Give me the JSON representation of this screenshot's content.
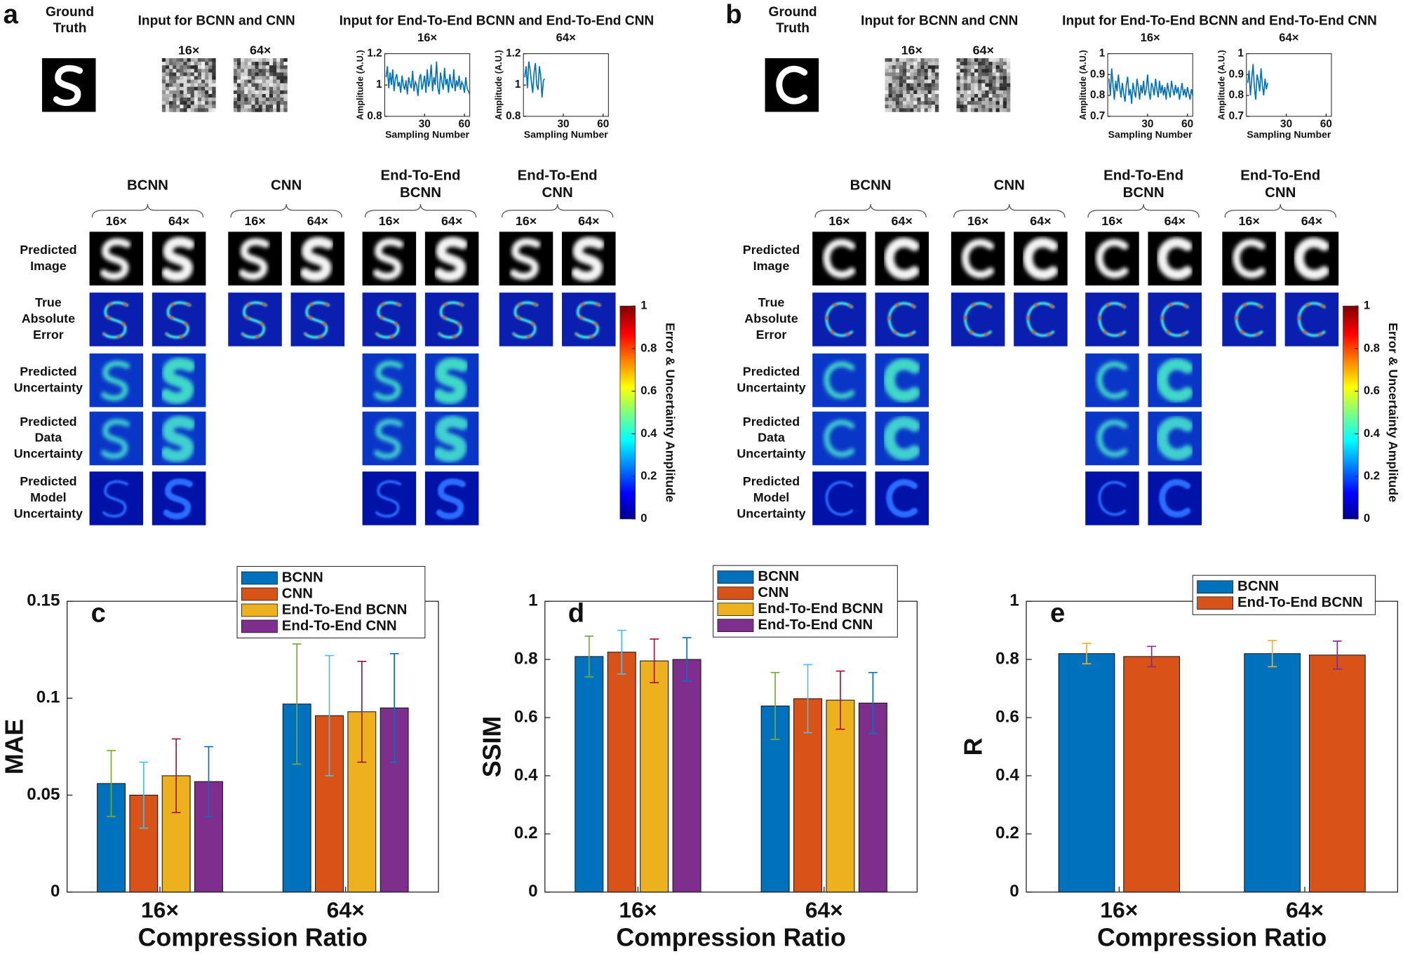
{
  "panels": [
    {
      "label": "a",
      "ground_truth": [
        "Ground",
        "Truth"
      ],
      "input_title": "Input for BCNN and CNN",
      "e2e_title": "Input for End-To-End BCNN and End-To-End CNN",
      "ratios": [
        "16×",
        "64×"
      ],
      "methods": [
        [
          "BCNN"
        ],
        [
          "CNN"
        ],
        [
          "End-To-End",
          "BCNN"
        ],
        [
          "End-To-End",
          "CNN"
        ]
      ],
      "rows": [
        [
          "Predicted",
          "Image"
        ],
        [
          "True",
          "Absolute",
          "Error"
        ],
        [
          "Predicted",
          "Uncertainty"
        ],
        [
          "Predicted",
          "Data",
          "Uncertainty"
        ],
        [
          "Predicted",
          "Model",
          "Uncertainty"
        ]
      ],
      "colorbar": {
        "label": "Error & Uncertainty Amplitude",
        "lim": [
          0,
          1
        ],
        "ticks": [
          0,
          0.2,
          0.4,
          0.6,
          0.8,
          1
        ]
      }
    },
    {
      "label": "b",
      "ground_truth": [
        "Ground",
        "Truth"
      ],
      "input_title": "Input for BCNN and CNN",
      "e2e_title": "Input for End-To-End BCNN and End-To-End CNN",
      "ratios": [
        "16×",
        "64×"
      ],
      "methods": [
        [
          "BCNN"
        ],
        [
          "CNN"
        ],
        [
          "End-To-End",
          "BCNN"
        ],
        [
          "End-To-End",
          "CNN"
        ]
      ],
      "rows": [
        [
          "Predicted",
          "Image"
        ],
        [
          "True",
          "Absolute",
          "Error"
        ],
        [
          "Predicted",
          "Uncertainty"
        ],
        [
          "Predicted",
          "Data",
          "Uncertainty"
        ],
        [
          "Predicted",
          "Model",
          "Uncertainty"
        ]
      ],
      "colorbar": {
        "label": "Error & Uncertainty Amplitude",
        "lim": [
          0,
          1
        ],
        "ticks": [
          0,
          0.2,
          0.4,
          0.6,
          0.8,
          1
        ]
      }
    }
  ],
  "chart_data": [
    {
      "type": "line",
      "title": "16×",
      "xlabel": "Sampling Number",
      "ylabel": "Amplitude (A.U.)",
      "color": "#0072bd",
      "x": [
        1,
        2,
        3,
        4,
        5,
        6,
        7,
        8,
        9,
        10,
        11,
        12,
        13,
        14,
        15,
        16,
        17,
        18,
        19,
        20,
        21,
        22,
        23,
        24,
        25,
        26,
        27,
        28,
        29,
        30,
        31,
        32,
        33,
        34,
        35,
        36,
        37,
        38,
        39,
        40,
        41,
        42,
        43,
        44,
        45,
        46,
        47,
        48,
        49,
        50,
        51,
        52,
        53,
        54,
        55,
        56,
        57,
        58,
        59,
        60,
        61,
        62,
        63,
        64
      ],
      "values": [
        1.05,
        1.12,
        0.98,
        1.08,
        1.0,
        1.1,
        0.96,
        1.04,
        1.07,
        0.99,
        1.02,
        0.95,
        1.06,
        1.0,
        0.97,
        1.03,
        0.94,
        1.05,
        1.01,
        0.98,
        1.09,
        0.96,
        1.02,
        1.0,
        0.93,
        1.04,
        1.07,
        0.97,
        1.01,
        1.06,
        0.95,
        1.1,
        0.99,
        1.03,
        1.13,
        0.96,
        1.05,
        1.0,
        1.15,
        0.98,
        0.94,
        1.08,
        1.02,
        0.97,
        1.11,
        1.0,
        1.04,
        0.95,
        1.07,
        1.01,
        0.98,
        1.1,
        0.96,
        1.03,
        0.99,
        1.06,
        0.97,
        1.02,
        1.0,
        0.95,
        1.05,
        0.98,
        0.96,
        0.94
      ],
      "xlim": [
        0,
        64
      ],
      "xticks": [
        30,
        60
      ],
      "ylim": [
        0.8,
        1.2
      ],
      "yticks": [
        0.8,
        1,
        1.2
      ]
    },
    {
      "type": "line",
      "title": "64×",
      "xlabel": "Sampling Number",
      "ylabel": "Amplitude (A.U.)",
      "color": "#0072bd",
      "x": [
        1,
        2,
        3,
        4,
        5,
        6,
        7,
        8,
        9,
        10,
        11,
        12,
        13,
        14,
        15,
        16
      ],
      "values": [
        1.05,
        1.12,
        0.98,
        1.15,
        1.1,
        1.02,
        0.95,
        1.08,
        1.14,
        1.0,
        0.97,
        1.12,
        1.06,
        0.92,
        1.03,
        1.04
      ],
      "xlim": [
        0,
        64
      ],
      "xticks": [
        30,
        60
      ],
      "ylim": [
        0.8,
        1.2
      ],
      "yticks": [
        0.8,
        1,
        1.2
      ]
    },
    {
      "type": "line",
      "title": "16×",
      "xlabel": "Sampling Number",
      "ylabel": "Amplitude (A.U.)",
      "color": "#0072bd",
      "x": [
        1,
        2,
        3,
        4,
        5,
        6,
        7,
        8,
        9,
        10,
        11,
        12,
        13,
        14,
        15,
        16,
        17,
        18,
        19,
        20,
        21,
        22,
        23,
        24,
        25,
        26,
        27,
        28,
        29,
        30,
        31,
        32,
        33,
        34,
        35,
        36,
        37,
        38,
        39,
        40,
        41,
        42,
        43,
        44,
        45,
        46,
        47,
        48,
        49,
        50,
        51,
        52,
        53,
        54,
        55,
        56,
        57,
        58,
        59,
        60,
        61,
        62,
        63,
        64
      ],
      "values": [
        0.88,
        0.8,
        0.93,
        0.85,
        0.78,
        0.87,
        0.82,
        0.9,
        0.84,
        0.79,
        0.86,
        0.81,
        0.77,
        0.85,
        0.89,
        0.8,
        0.83,
        0.76,
        0.86,
        0.82,
        0.79,
        0.88,
        0.84,
        0.78,
        0.85,
        0.81,
        0.87,
        0.8,
        0.83,
        0.9,
        0.82,
        0.78,
        0.86,
        0.84,
        0.8,
        0.88,
        0.83,
        0.79,
        0.87,
        0.81,
        0.85,
        0.8,
        0.84,
        0.78,
        0.86,
        0.82,
        0.79,
        0.87,
        0.83,
        0.8,
        0.85,
        0.81,
        0.84,
        0.78,
        0.82,
        0.86,
        0.8,
        0.83,
        0.79,
        0.84,
        0.81,
        0.78,
        0.83,
        0.8
      ],
      "xlim": [
        0,
        64
      ],
      "xticks": [
        30,
        60
      ],
      "ylim": [
        0.7,
        1
      ],
      "yticks": [
        0.7,
        0.8,
        0.9,
        1
      ]
    },
    {
      "type": "line",
      "title": "64×",
      "xlabel": "Sampling Number",
      "ylabel": "Amplitude (A.U.)",
      "color": "#0072bd",
      "x": [
        1,
        2,
        3,
        4,
        5,
        6,
        7,
        8,
        9,
        10,
        11,
        12,
        13,
        14,
        15,
        16
      ],
      "values": [
        0.86,
        0.92,
        0.8,
        0.88,
        0.95,
        0.84,
        0.78,
        0.9,
        0.87,
        0.82,
        0.93,
        0.85,
        0.8,
        0.88,
        0.83,
        0.86
      ],
      "xlim": [
        0,
        64
      ],
      "xticks": [
        30,
        60
      ],
      "ylim": [
        0.7,
        1
      ],
      "yticks": [
        0.7,
        0.8,
        0.9,
        1
      ]
    },
    {
      "type": "bar",
      "label": "c",
      "xlabel": "Compression Ratio",
      "ylabel": "MAE",
      "categories": [
        "16×",
        "64×"
      ],
      "ylim": [
        0,
        0.15
      ],
      "yticks": [
        0,
        0.05,
        0.1,
        0.15
      ],
      "legend": "upper right",
      "series": [
        {
          "name": "BCNN",
          "color": "#0072bd",
          "values": [
            0.056,
            0.097
          ],
          "errors": [
            0.017,
            0.031
          ],
          "error_color": "#77ac30"
        },
        {
          "name": "CNN",
          "color": "#d95319",
          "values": [
            0.05,
            0.091
          ],
          "errors": [
            0.017,
            0.031
          ],
          "error_color": "#4dbeee"
        },
        {
          "name": "End-To-End BCNN",
          "color": "#edb120",
          "values": [
            0.06,
            0.093
          ],
          "errors": [
            0.019,
            0.026
          ],
          "error_color": "#a2142f"
        },
        {
          "name": "End-To-End CNN",
          "color": "#7e2f8e",
          "values": [
            0.057,
            0.095
          ],
          "errors": [
            0.018,
            0.028
          ],
          "error_color": "#0072bd"
        }
      ]
    },
    {
      "type": "bar",
      "label": "d",
      "xlabel": "Compression Ratio",
      "ylabel": "SSIM",
      "categories": [
        "16×",
        "64×"
      ],
      "ylim": [
        0,
        1
      ],
      "yticks": [
        0,
        0.2,
        0.4,
        0.6,
        0.8,
        1
      ],
      "legend": "upper right",
      "series": [
        {
          "name": "BCNN",
          "color": "#0072bd",
          "values": [
            0.81,
            0.64
          ],
          "errors": [
            0.07,
            0.115
          ],
          "error_color": "#77ac30"
        },
        {
          "name": "CNN",
          "color": "#d95319",
          "values": [
            0.825,
            0.665
          ],
          "errors": [
            0.075,
            0.117
          ],
          "error_color": "#4dbeee"
        },
        {
          "name": "End-To-End BCNN",
          "color": "#edb120",
          "values": [
            0.795,
            0.66
          ],
          "errors": [
            0.075,
            0.1
          ],
          "error_color": "#a2142f"
        },
        {
          "name": "End-To-End CNN",
          "color": "#7e2f8e",
          "values": [
            0.8,
            0.65
          ],
          "errors": [
            0.075,
            0.105
          ],
          "error_color": "#0072bd"
        }
      ]
    },
    {
      "type": "bar",
      "label": "e",
      "xlabel": "Compression Ratio",
      "ylabel": "R",
      "categories": [
        "16×",
        "64×"
      ],
      "ylim": [
        0,
        1
      ],
      "yticks": [
        0,
        0.2,
        0.4,
        0.6,
        0.8,
        1
      ],
      "legend": "upper right",
      "series": [
        {
          "name": "BCNN",
          "color": "#0072bd",
          "values": [
            0.82,
            0.82
          ],
          "errors": [
            0.035,
            0.045
          ],
          "error_color": "#edb120"
        },
        {
          "name": "End-To-End BCNN",
          "color": "#d95319",
          "values": [
            0.81,
            0.815
          ],
          "errors": [
            0.035,
            0.048
          ],
          "error_color": "#7e2f8e"
        }
      ]
    }
  ]
}
